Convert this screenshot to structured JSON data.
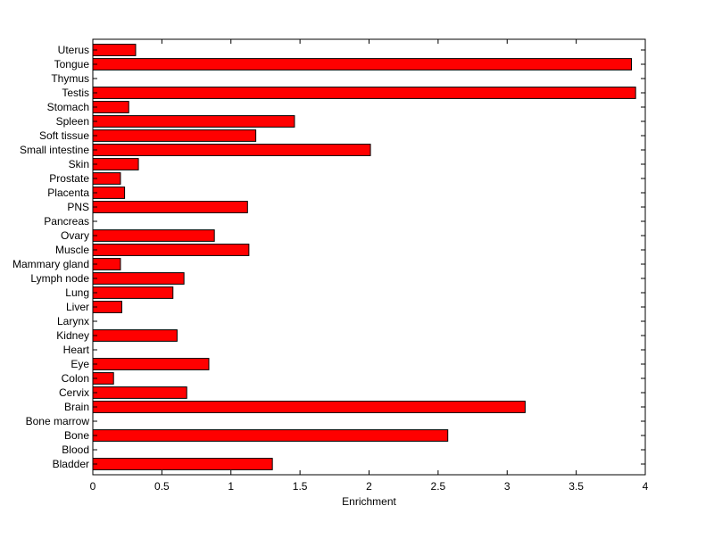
{
  "chart_data": {
    "type": "bar",
    "orientation": "horizontal",
    "title": "",
    "xlabel": "Enrichment",
    "ylabel": "",
    "xlim": [
      0,
      4
    ],
    "xticks": [
      0,
      0.5,
      1,
      1.5,
      2,
      2.5,
      3,
      3.5,
      4
    ],
    "xtick_labels": [
      "0",
      "0.5",
      "1",
      "1.5",
      "2",
      "2.5",
      "3",
      "3.5",
      "4"
    ],
    "grid": false,
    "legend": "none",
    "bar_color": "#ff0000",
    "edge_color": "#000000",
    "categories": [
      "Uterus",
      "Tongue",
      "Thymus",
      "Testis",
      "Stomach",
      "Spleen",
      "Soft tissue",
      "Small intestine",
      "Skin",
      "Prostate",
      "Placenta",
      "PNS",
      "Pancreas",
      "Ovary",
      "Muscle",
      "Mammary gland",
      "Lymph node",
      "Lung",
      "Liver",
      "Larynx",
      "Kidney",
      "Heart",
      "Eye",
      "Colon",
      "Cervix",
      "Brain",
      "Bone marrow",
      "Bone",
      "Blood",
      "Bladder"
    ],
    "values": [
      0.31,
      3.9,
      0,
      3.93,
      0.26,
      1.46,
      1.18,
      2.01,
      0.33,
      0.2,
      0.23,
      1.12,
      0,
      0.88,
      1.13,
      0.2,
      0.66,
      0.58,
      0.21,
      0,
      0.61,
      0,
      0.84,
      0.15,
      0.68,
      3.13,
      0,
      2.57,
      0,
      1.3
    ]
  }
}
